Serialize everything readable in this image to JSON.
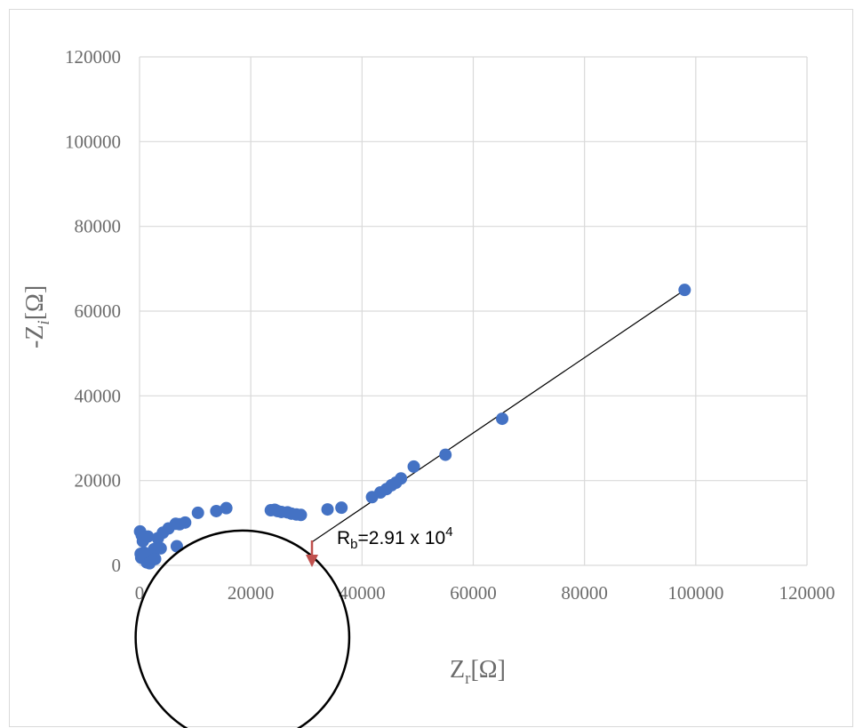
{
  "chart_data": {
    "type": "scatter",
    "xlabel": {
      "main": "Z",
      "sub": "r",
      "unit": "[Ω]"
    },
    "ylabel": {
      "prefix": "-Z",
      "sub": "i",
      "unit": "[Ω]"
    },
    "xlim": [
      0,
      120000
    ],
    "ylim": [
      0,
      120000
    ],
    "xticks": [
      "0",
      "20000",
      "40000",
      "60000",
      "80000",
      "100000",
      "120000"
    ],
    "yticks": [
      "0",
      "20000",
      "40000",
      "60000",
      "80000",
      "100000",
      "120000"
    ],
    "grid": true,
    "marker_color": "#4472c4",
    "series": [
      {
        "x": [
          98000,
          65200,
          55000,
          49300,
          47000,
          46100,
          45300,
          44400,
          43300,
          41800,
          36300,
          33800,
          29000,
          28200,
          27300,
          26600,
          25500,
          24800,
          24300,
          23600,
          15600,
          13800,
          10500,
          8200,
          7200,
          6500,
          5200,
          4200,
          3300,
          3000,
          2600,
          2300,
          2000,
          1600,
          1300,
          1000,
          800,
          600,
          400,
          300,
          200,
          100,
          1800,
          1500,
          2800,
          6700,
          3800
        ],
        "y": [
          65000,
          34600,
          26100,
          23300,
          20500,
          19500,
          18900,
          18000,
          17200,
          16100,
          13600,
          13200,
          11900,
          12000,
          12200,
          12500,
          12600,
          12800,
          13100,
          13000,
          13500,
          12800,
          12400,
          10100,
          9700,
          9800,
          8700,
          7700,
          6400,
          4000,
          3800,
          2000,
          1500,
          1000,
          700,
          1800,
          3000,
          5700,
          7100,
          1800,
          2700,
          8000,
          500,
          6800,
          1500,
          4500,
          4000
        ]
      }
    ],
    "fit_line": {
      "x": [
        31000,
        98000
      ],
      "y": [
        5500,
        65000
      ],
      "color": "#000000"
    },
    "annotation": {
      "base": "R",
      "sub": "b",
      "text": "=2.91 x 10",
      "sup": "4",
      "x": 31000,
      "arrow_color": "#c0504d"
    },
    "circle": {
      "cx": 18500,
      "cy": -17000,
      "r": 19200,
      "color": "#000000"
    }
  }
}
